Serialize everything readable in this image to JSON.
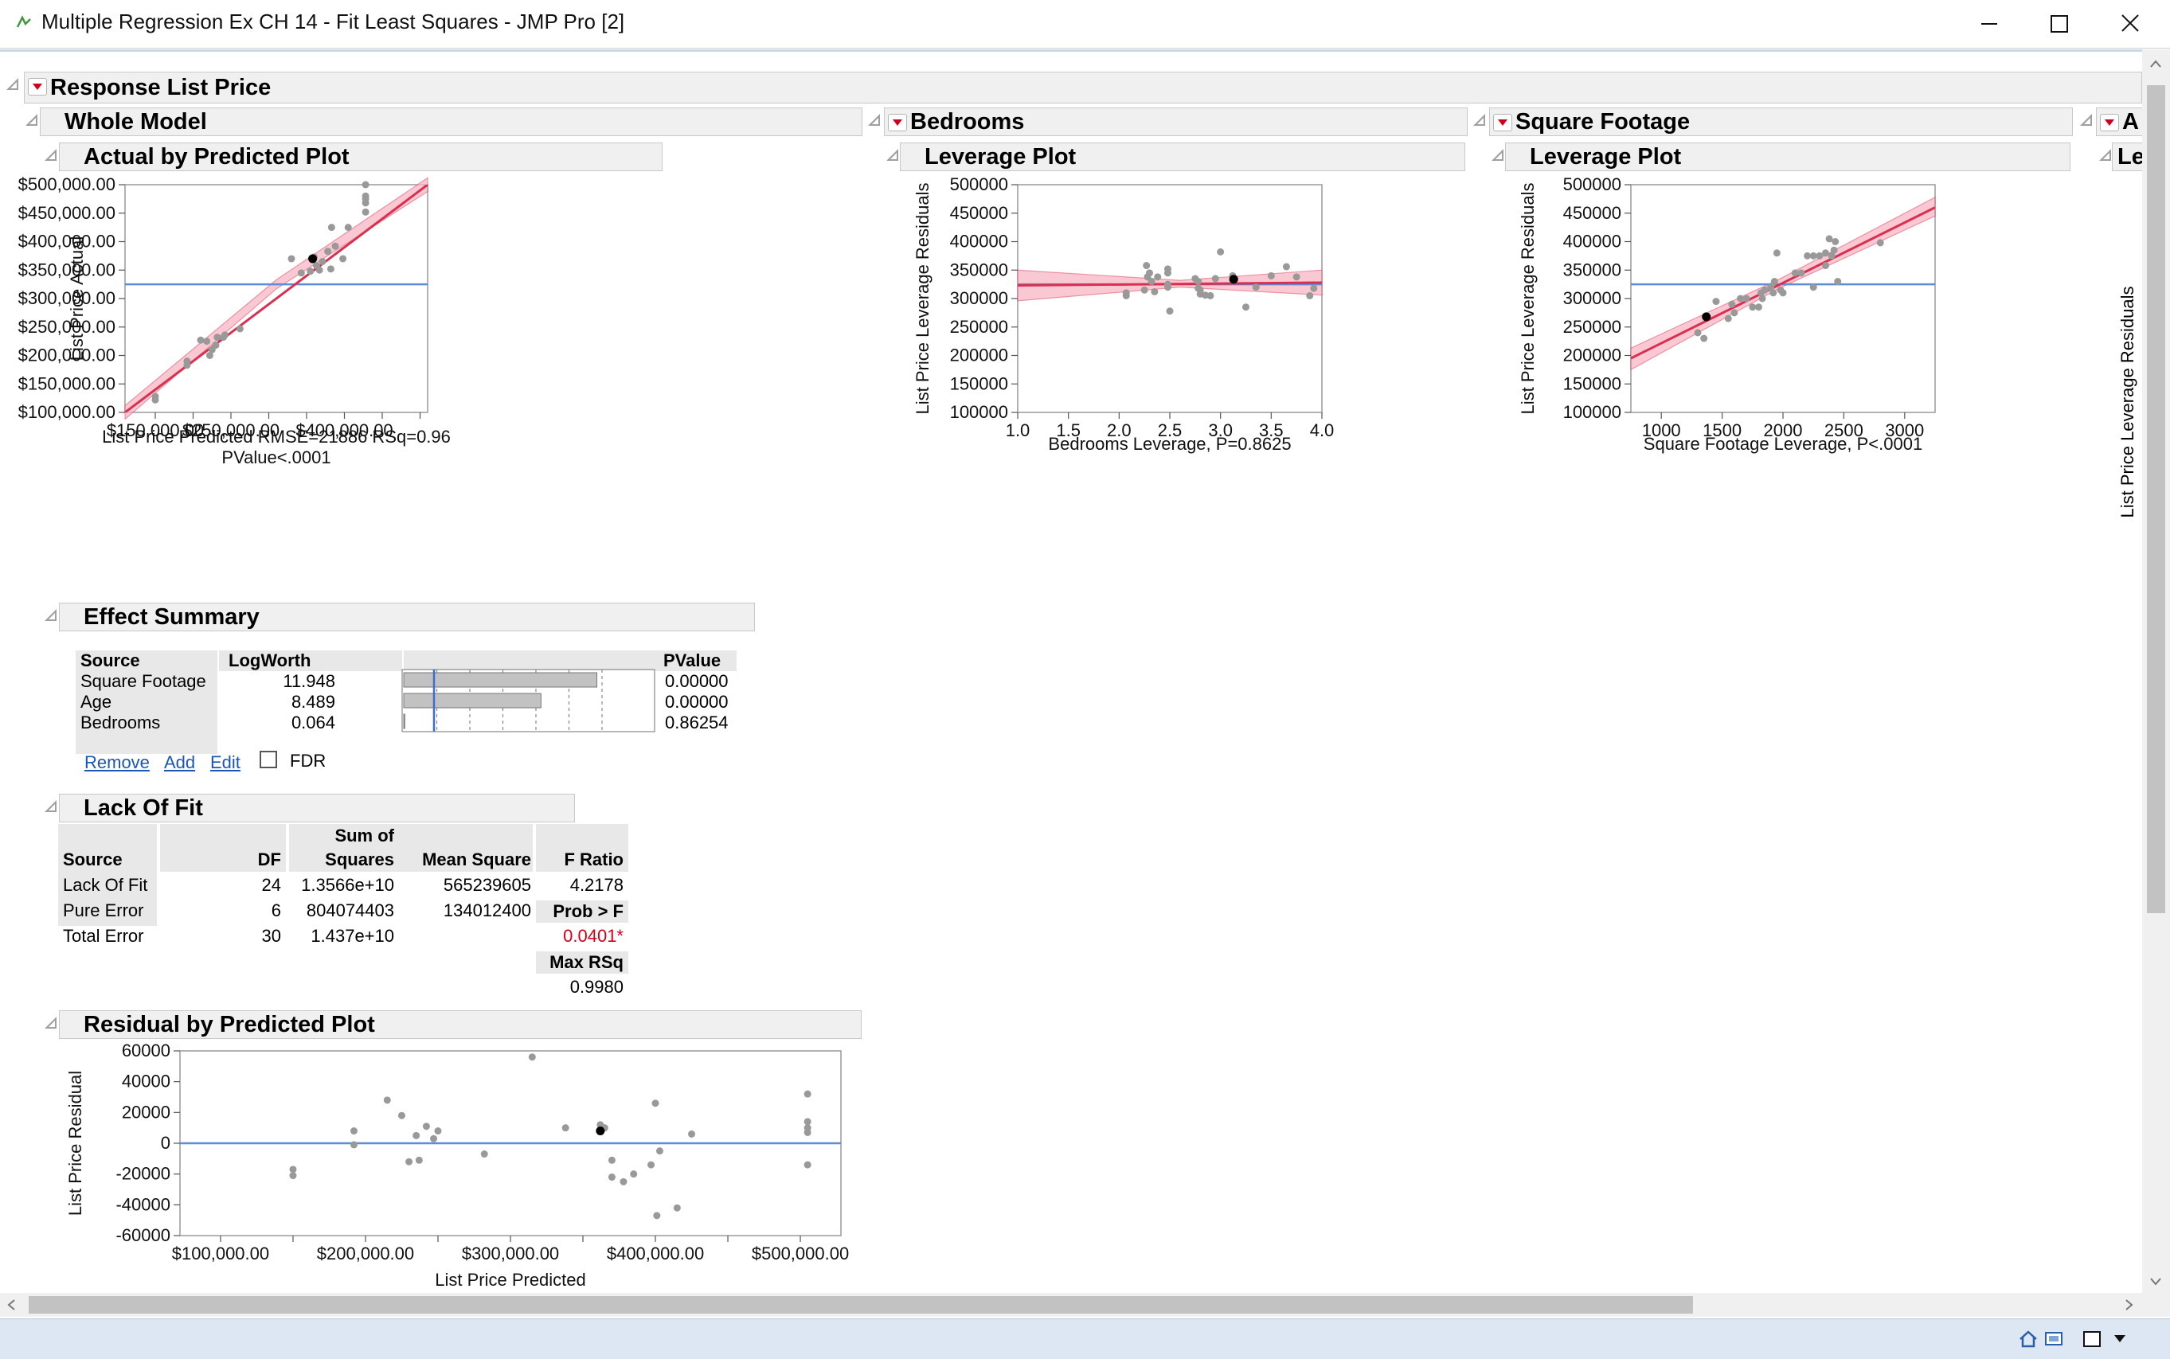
{
  "window": {
    "title": "Multiple Regression Ex CH 14 - Fit Least Squares - JMP Pro [2]"
  },
  "sections": {
    "response": "Response List Price",
    "whole_model": "Whole Model",
    "actual_by_predicted": "Actual by Predicted Plot",
    "bedrooms": "Bedrooms",
    "bedrooms_leverage": "Leverage Plot",
    "square_footage": "Square Footage",
    "sqft_leverage": "Leverage Plot",
    "age_partial": "A",
    "age_leverage_partial": "Le",
    "effect_summary": "Effect Summary",
    "lack_of_fit": "Lack Of Fit",
    "residual_by_predicted": "Residual by Predicted Plot"
  },
  "colors": {
    "fit_line": "#d9304f",
    "ci_band": "#f7b6c4",
    "mean_line": "#5b8ed6",
    "point": "#999999",
    "highlight": "#000000",
    "pvalue_red": "#d0021b",
    "link": "#1a56b6"
  },
  "effect_summary": {
    "headers": {
      "source": "Source",
      "logworth": "LogWorth",
      "pvalue": "PValue"
    },
    "rows": [
      {
        "source": "Square Footage",
        "logworth": "11.948",
        "pvalue": "0.00000",
        "lw": 11.948
      },
      {
        "source": "Age",
        "logworth": "8.489",
        "pvalue": "0.00000",
        "lw": 8.489
      },
      {
        "source": "Bedrooms",
        "logworth": "0.064",
        "pvalue": "0.86254",
        "lw": 0.064
      }
    ],
    "remove": "Remove",
    "add": "Add",
    "edit": "Edit",
    "fdr": "FDR"
  },
  "lack_of_fit": {
    "h_source": "Source",
    "h_df": "DF",
    "h_ss1": "Sum of",
    "h_ss2": "Squares",
    "h_ms": "Mean Square",
    "h_f": "F Ratio",
    "r1": {
      "source": "Lack Of Fit",
      "df": "24",
      "ss": "1.3566e+10",
      "ms": "565239605",
      "f": "4.2178"
    },
    "r2": {
      "source": "Pure Error",
      "df": "6",
      "ss": "804074403",
      "ms": "134012400"
    },
    "r3": {
      "source": "Total Error",
      "df": "30",
      "ss": "1.437e+10"
    },
    "prob_label": "Prob > F",
    "prob": "0.0401*",
    "maxrsq_label": "Max RSq",
    "maxrsq": "0.9980"
  },
  "chart_data": [
    {
      "type": "scatter",
      "id": "actual_by_predicted",
      "xlabel": "List Price Predicted RMSE=21886 RSq=0.96",
      "xlabel2": "PValue<.0001",
      "ylabel": "List Price Actual",
      "xlim": [
        110000,
        510000
      ],
      "ylim": [
        100000,
        500000
      ],
      "xticks": [
        {
          "v": 150000,
          "t": "$150,000.00"
        },
        {
          "v": 250000,
          "t": "$250,000.00"
        },
        {
          "v": 400000,
          "t": "$400,000.00"
        }
      ],
      "xminor": [
        200000,
        300000,
        350000,
        450000,
        500000
      ],
      "yticks": [
        {
          "v": 100000,
          "t": "$100,000.00"
        },
        {
          "v": 150000,
          "t": "$150,000.00"
        },
        {
          "v": 200000,
          "t": "$200,000.00"
        },
        {
          "v": 250000,
          "t": "$250,000.00"
        },
        {
          "v": 300000,
          "t": "$300,000.00"
        },
        {
          "v": 350000,
          "t": "$350,000.00"
        },
        {
          "v": 400000,
          "t": "$400,000.00"
        },
        {
          "v": 450000,
          "t": "$450,000.00"
        },
        {
          "v": 500000,
          "t": "$500,000.00"
        }
      ],
      "mean": 325000,
      "fit": [
        [
          110000,
          100000
        ],
        [
          510000,
          500000
        ]
      ],
      "band": [
        [
          110000,
          88000,
          112000
        ],
        [
          310000,
          317000,
          333000
        ],
        [
          510000,
          488000,
          512000
        ]
      ],
      "points": [
        [
          150000,
          128000
        ],
        [
          150000,
          122000
        ],
        [
          192000,
          190000
        ],
        [
          192000,
          183000
        ],
        [
          210000,
          227000
        ],
        [
          218000,
          225000
        ],
        [
          225000,
          210000
        ],
        [
          222000,
          200000
        ],
        [
          230000,
          218000
        ],
        [
          232000,
          232000
        ],
        [
          240000,
          232000
        ],
        [
          242000,
          236000
        ],
        [
          262000,
          247000
        ],
        [
          330000,
          370000
        ],
        [
          343000,
          345000
        ],
        [
          355000,
          348000
        ],
        [
          360000,
          373000
        ],
        [
          363000,
          358000
        ],
        [
          367000,
          350000
        ],
        [
          371000,
          365000
        ],
        [
          378000,
          383000
        ],
        [
          382000,
          352000
        ],
        [
          388000,
          392000
        ],
        [
          383000,
          425000
        ],
        [
          398000,
          370000
        ],
        [
          405000,
          425000
        ],
        [
          428000,
          500000
        ],
        [
          428000,
          480000
        ],
        [
          428000,
          475000
        ],
        [
          428000,
          468000
        ],
        [
          428000,
          452000
        ]
      ],
      "highlight": [
        [
          358000,
          370000
        ]
      ]
    },
    {
      "type": "scatter",
      "id": "bedrooms_leverage",
      "xlabel": "Bedrooms Leverage, P=0.8625",
      "ylabel": "List Price Leverage Residuals",
      "xlim": [
        1.0,
        4.0
      ],
      "ylim": [
        100000,
        500000
      ],
      "xticks": [
        {
          "v": 1.0,
          "t": "1.0"
        },
        {
          "v": 1.5,
          "t": "1.5"
        },
        {
          "v": 2.0,
          "t": "2.0"
        },
        {
          "v": 2.5,
          "t": "2.5"
        },
        {
          "v": 3.0,
          "t": "3.0"
        },
        {
          "v": 3.5,
          "t": "3.5"
        },
        {
          "v": 4.0,
          "t": "4.0"
        }
      ],
      "yticks": [
        {
          "v": 100000,
          "t": "100000"
        },
        {
          "v": 150000,
          "t": "150000"
        },
        {
          "v": 200000,
          "t": "200000"
        },
        {
          "v": 250000,
          "t": "250000"
        },
        {
          "v": 300000,
          "t": "300000"
        },
        {
          "v": 350000,
          "t": "350000"
        },
        {
          "v": 400000,
          "t": "400000"
        },
        {
          "v": 450000,
          "t": "450000"
        },
        {
          "v": 500000,
          "t": "500000"
        }
      ],
      "mean": 325000,
      "fit": [
        [
          1.0,
          323000
        ],
        [
          4.0,
          328000
        ]
      ],
      "band": [
        [
          1.0,
          296000,
          350000
        ],
        [
          2.6,
          320000,
          332000
        ],
        [
          4.0,
          306000,
          350000
        ]
      ],
      "points": [
        [
          2.07,
          305000
        ],
        [
          2.07,
          310000
        ],
        [
          2.25,
          315000
        ],
        [
          2.27,
          358000
        ],
        [
          2.28,
          338000
        ],
        [
          2.3,
          345000
        ],
        [
          2.32,
          330000
        ],
        [
          2.35,
          312000
        ],
        [
          2.38,
          338000
        ],
        [
          2.48,
          352000
        ],
        [
          2.48,
          345000
        ],
        [
          2.48,
          325000
        ],
        [
          2.48,
          320000
        ],
        [
          2.5,
          278000
        ],
        [
          2.75,
          335000
        ],
        [
          2.78,
          330000
        ],
        [
          2.78,
          318000
        ],
        [
          2.8,
          315000
        ],
        [
          2.8,
          308000
        ],
        [
          2.85,
          306000
        ],
        [
          2.9,
          305000
        ],
        [
          2.95,
          335000
        ],
        [
          3.0,
          382000
        ],
        [
          3.12,
          340000
        ],
        [
          3.12,
          333000
        ],
        [
          3.25,
          285000
        ],
        [
          3.35,
          320000
        ],
        [
          3.5,
          340000
        ],
        [
          3.65,
          356000
        ],
        [
          3.75,
          338000
        ],
        [
          3.88,
          305000
        ],
        [
          3.92,
          318000
        ]
      ],
      "highlight": [
        [
          3.13,
          334000
        ]
      ]
    },
    {
      "type": "scatter",
      "id": "sqft_leverage",
      "xlabel": "Square Footage Leverage, P<.0001",
      "ylabel": "List Price Leverage Residuals",
      "xlim": [
        750,
        3250
      ],
      "ylim": [
        100000,
        500000
      ],
      "xticks": [
        {
          "v": 1000,
          "t": "1000"
        },
        {
          "v": 1500,
          "t": "1500"
        },
        {
          "v": 2000,
          "t": "2000"
        },
        {
          "v": 2500,
          "t": "2500"
        },
        {
          "v": 3000,
          "t": "3000"
        }
      ],
      "yticks": [
        {
          "v": 100000,
          "t": "100000"
        },
        {
          "v": 150000,
          "t": "150000"
        },
        {
          "v": 200000,
          "t": "200000"
        },
        {
          "v": 250000,
          "t": "250000"
        },
        {
          "v": 300000,
          "t": "300000"
        },
        {
          "v": 350000,
          "t": "350000"
        },
        {
          "v": 400000,
          "t": "400000"
        },
        {
          "v": 450000,
          "t": "450000"
        },
        {
          "v": 500000,
          "t": "500000"
        }
      ],
      "mean": 325000,
      "fit": [
        [
          750,
          195000
        ],
        [
          3250,
          460000
        ]
      ],
      "band": [
        [
          750,
          175000,
          213000
        ],
        [
          1960,
          317000,
          333000
        ],
        [
          3250,
          445000,
          478000
        ]
      ],
      "points": [
        [
          1300,
          240000
        ],
        [
          1350,
          230000
        ],
        [
          1450,
          295000
        ],
        [
          1550,
          265000
        ],
        [
          1580,
          290000
        ],
        [
          1600,
          275000
        ],
        [
          1650,
          300000
        ],
        [
          1700,
          300000
        ],
        [
          1750,
          285000
        ],
        [
          1800,
          285000
        ],
        [
          1820,
          310000
        ],
        [
          1830,
          300000
        ],
        [
          1850,
          315000
        ],
        [
          1900,
          320000
        ],
        [
          1920,
          310000
        ],
        [
          1930,
          330000
        ],
        [
          1950,
          380000
        ],
        [
          1980,
          315000
        ],
        [
          2000,
          310000
        ],
        [
          2100,
          345000
        ],
        [
          2150,
          345000
        ],
        [
          2200,
          375000
        ],
        [
          2250,
          320000
        ],
        [
          2250,
          375000
        ],
        [
          2300,
          375000
        ],
        [
          2350,
          358000
        ],
        [
          2350,
          380000
        ],
        [
          2380,
          405000
        ],
        [
          2400,
          375000
        ],
        [
          2420,
          385000
        ],
        [
          2430,
          400000
        ],
        [
          2450,
          330000
        ],
        [
          2800,
          398000
        ]
      ],
      "highlight": [
        [
          1370,
          268000
        ]
      ]
    },
    {
      "type": "scatter",
      "id": "residual_by_predicted",
      "xlabel": "List Price Predicted",
      "ylabel": "List Price Residual",
      "xlim": [
        72000,
        528000
      ],
      "ylim": [
        -60000,
        60000
      ],
      "xticks": [
        {
          "v": 100000,
          "t": "$100,000.00"
        },
        {
          "v": 200000,
          "t": "$200,000.00"
        },
        {
          "v": 300000,
          "t": "$300,000.00"
        },
        {
          "v": 400000,
          "t": "$400,000.00"
        },
        {
          "v": 500000,
          "t": "$500,000.00"
        }
      ],
      "xminor": [
        150000,
        250000,
        350000,
        450000
      ],
      "yticks": [
        {
          "v": -60000,
          "t": "-60000"
        },
        {
          "v": -40000,
          "t": "-40000"
        },
        {
          "v": -20000,
          "t": "-20000"
        },
        {
          "v": 0,
          "t": "0"
        },
        {
          "v": 20000,
          "t": "20000"
        },
        {
          "v": 40000,
          "t": "40000"
        },
        {
          "v": 60000,
          "t": "60000"
        }
      ],
      "mean": 0,
      "points": [
        [
          150000,
          -17000
        ],
        [
          150000,
          -21000
        ],
        [
          192000,
          8000
        ],
        [
          192000,
          -1000
        ],
        [
          215000,
          28000
        ],
        [
          225000,
          18000
        ],
        [
          230000,
          -12000
        ],
        [
          235000,
          5000
        ],
        [
          237000,
          -11000
        ],
        [
          242000,
          11000
        ],
        [
          247000,
          3000
        ],
        [
          250000,
          8000
        ],
        [
          282000,
          -7000
        ],
        [
          315000,
          56000
        ],
        [
          338000,
          10000
        ],
        [
          362000,
          12000
        ],
        [
          365000,
          10000
        ],
        [
          370000,
          -11000
        ],
        [
          370000,
          -22000
        ],
        [
          378000,
          -25000
        ],
        [
          385000,
          -20000
        ],
        [
          397000,
          -14000
        ],
        [
          400000,
          26000
        ],
        [
          403000,
          -5000
        ],
        [
          401000,
          -47000
        ],
        [
          415000,
          -42000
        ],
        [
          425000,
          6000
        ],
        [
          505000,
          32000
        ],
        [
          505000,
          14000
        ],
        [
          505000,
          10000
        ],
        [
          505000,
          7000
        ],
        [
          505000,
          -14000
        ]
      ],
      "highlight": [
        [
          362000,
          8000
        ]
      ]
    }
  ]
}
